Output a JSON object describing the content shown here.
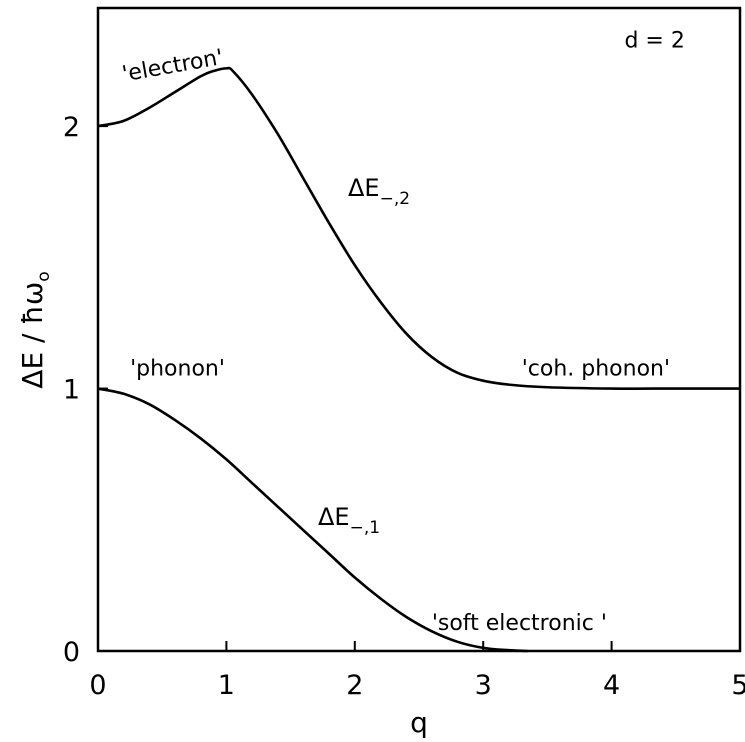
{
  "chart_data": {
    "type": "line",
    "xlabel": "q",
    "ylabel": "ΔE / ħω",
    "ylabel_sub": "o",
    "xlim": [
      0,
      5
    ],
    "ylim": [
      0,
      2.45
    ],
    "x_ticks": [
      0,
      1,
      2,
      3,
      4,
      5
    ],
    "x_tick_labels": [
      "0",
      "1",
      "2",
      "3",
      "4",
      "5"
    ],
    "y_ticks": [
      0,
      1,
      2
    ],
    "y_tick_labels": [
      "0",
      "1",
      "2"
    ],
    "grid": false,
    "series": [
      {
        "name": "ΔE",
        "name_sub": "−,2",
        "x": [
          0,
          0.2,
          0.4,
          0.6,
          0.8,
          0.9,
          1.0,
          1.05,
          1.2,
          1.4,
          1.6,
          1.8,
          2.0,
          2.2,
          2.4,
          2.6,
          2.8,
          3.0,
          3.2,
          3.5,
          4.0,
          4.5,
          5.0
        ],
        "y": [
          2.0,
          2.02,
          2.07,
          2.13,
          2.19,
          2.21,
          2.22,
          2.21,
          2.12,
          1.97,
          1.8,
          1.63,
          1.47,
          1.33,
          1.21,
          1.12,
          1.06,
          1.03,
          1.015,
          1.005,
          1.0,
          1.0,
          1.0
        ]
      },
      {
        "name": "ΔE",
        "name_sub": "−,1",
        "x": [
          0,
          0.2,
          0.4,
          0.6,
          0.8,
          1.0,
          1.2,
          1.4,
          1.6,
          1.8,
          2.0,
          2.2,
          2.4,
          2.6,
          2.8,
          3.0,
          3.2,
          3.35
        ],
        "y": [
          1.0,
          0.98,
          0.94,
          0.88,
          0.81,
          0.73,
          0.64,
          0.55,
          0.46,
          0.37,
          0.28,
          0.2,
          0.13,
          0.075,
          0.035,
          0.012,
          0.003,
          0.0
        ]
      }
    ],
    "annotations": [
      {
        "text": "'electron'",
        "x": 0.2,
        "y": 2.17,
        "rotate": -10
      },
      {
        "text": "d = 2",
        "x": 4.1,
        "y": 2.3
      },
      {
        "text": "'phonon'",
        "x": 0.25,
        "y": 1.05
      },
      {
        "text": "'coh. phonon'",
        "x": 3.3,
        "y": 1.05
      },
      {
        "text": "'soft electronic '",
        "x": 2.6,
        "y": 0.08
      }
    ]
  }
}
